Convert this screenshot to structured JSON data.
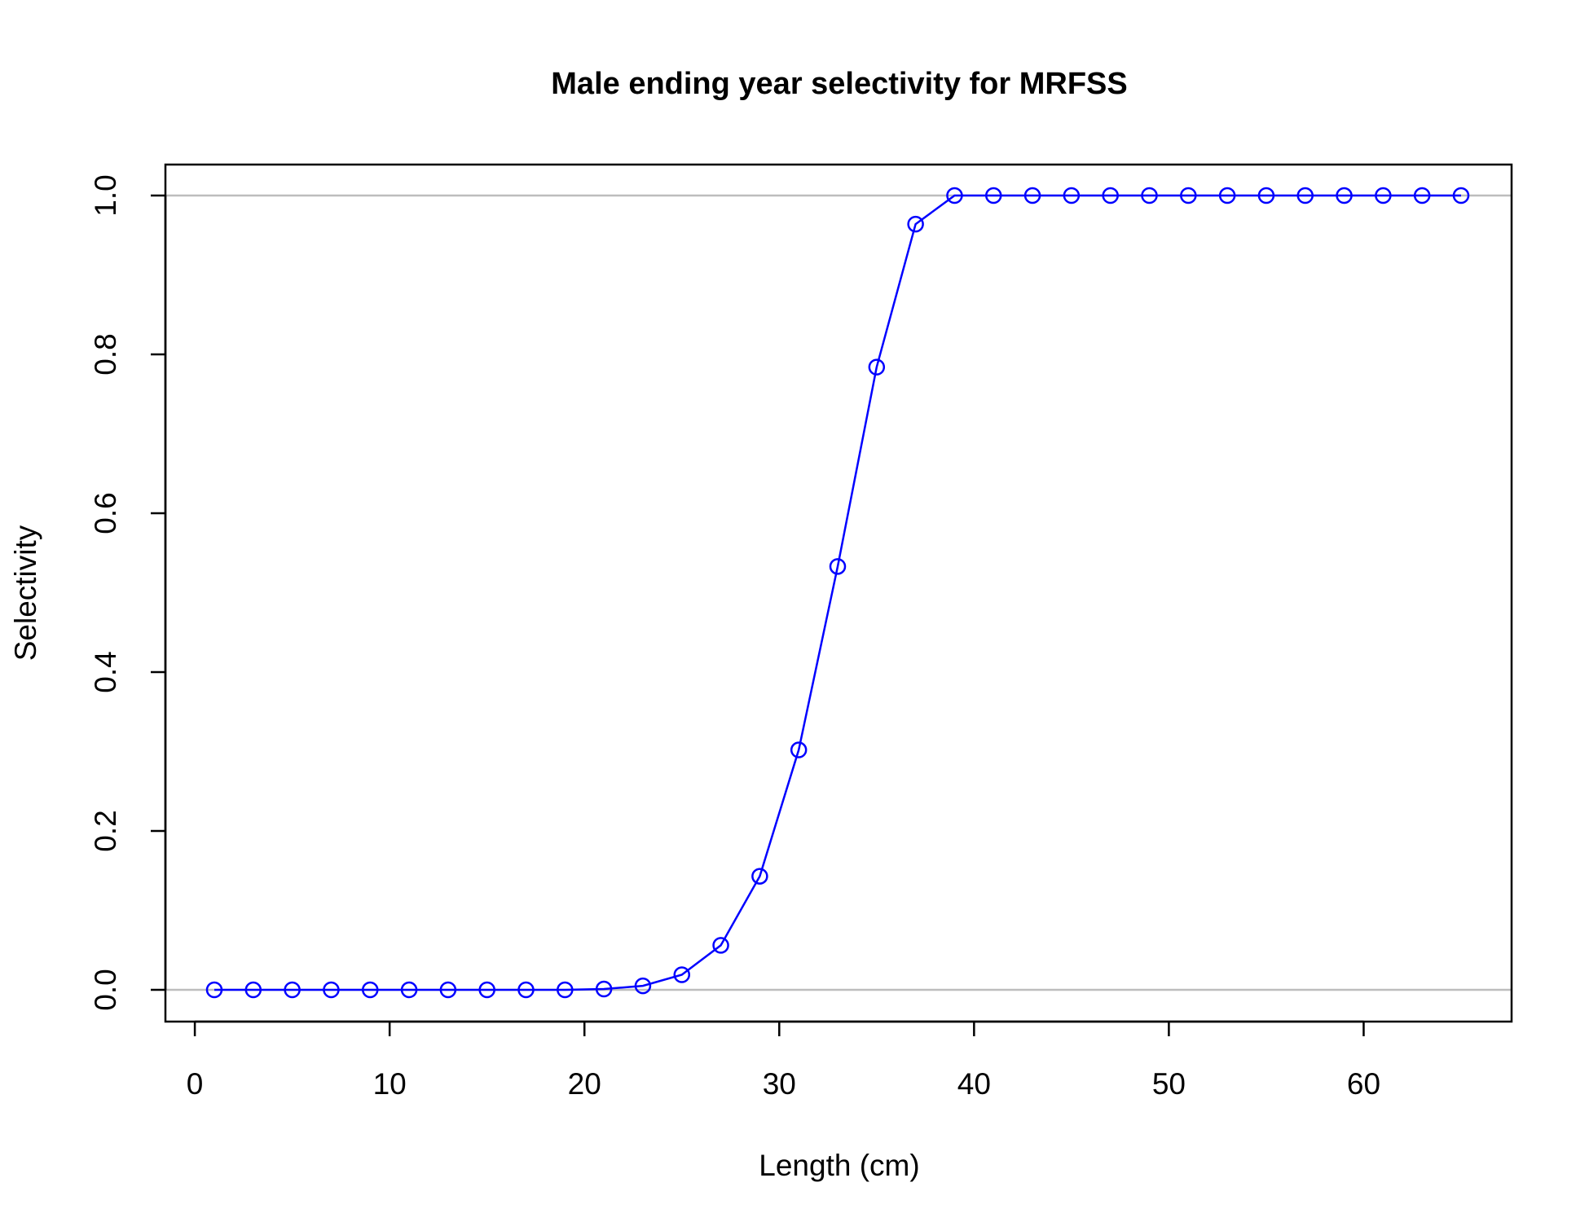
{
  "chart_data": {
    "type": "line",
    "title": "Male ending year selectivity for MRFSS",
    "xlabel": "Length (cm)",
    "ylabel": "Selectivity",
    "xlim": [
      0,
      67
    ],
    "ylim": [
      0,
      1
    ],
    "x_ticks": [
      0,
      10,
      20,
      30,
      40,
      50,
      60
    ],
    "y_ticks": [
      0.0,
      0.2,
      0.4,
      0.6,
      0.8,
      1.0
    ],
    "x_tick_labels": [
      "0",
      "10",
      "20",
      "30",
      "40",
      "50",
      "60"
    ],
    "y_tick_labels": [
      "0.0",
      "0.2",
      "0.4",
      "0.6",
      "0.8",
      "1.0"
    ],
    "reference_lines": [
      0,
      1
    ],
    "grid": false,
    "legend": "none",
    "series": [
      {
        "color": "#0000ff",
        "marker": "open-circle",
        "x": [
          1,
          3,
          5,
          7,
          9,
          11,
          13,
          15,
          17,
          19,
          21,
          23,
          25,
          27,
          29,
          31,
          33,
          35,
          37,
          39,
          41,
          43,
          45,
          47,
          49,
          51,
          53,
          55,
          57,
          59,
          61,
          63,
          65
        ],
        "y": [
          0,
          0,
          0,
          0,
          0,
          0,
          0,
          0,
          0,
          0,
          0.001,
          0.005,
          0.019,
          0.056,
          0.143,
          0.302,
          0.533,
          0.784,
          0.964,
          1.0,
          1.0,
          1.0,
          1.0,
          1.0,
          1.0,
          1.0,
          1.0,
          1.0,
          1.0,
          1.0,
          1.0,
          1.0,
          1.0
        ]
      }
    ]
  }
}
